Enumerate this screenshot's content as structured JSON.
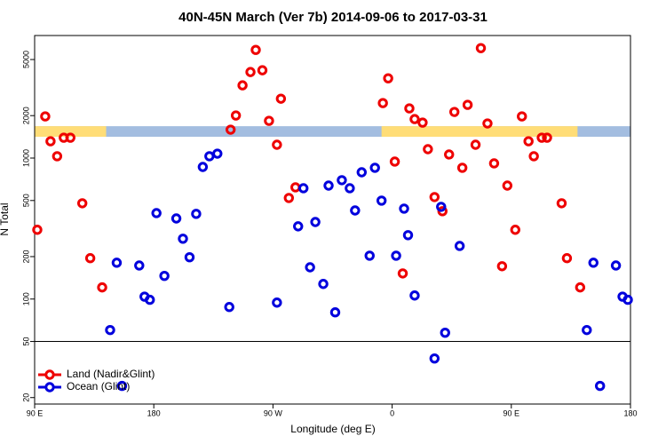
{
  "chart_data": {
    "type": "scatter",
    "title": "40N-45N March (Ver 7b)   2014-09-06 to 2017-03-31",
    "x_label": "Longitude (deg E)",
    "y_label": "N Total",
    "xlim": [
      -270,
      180
    ],
    "xticks": [
      {
        "value": -270,
        "label": "90 E"
      },
      {
        "value": -180,
        "label": "180"
      },
      {
        "value": -90,
        "label": "90 W"
      },
      0,
      {
        "value": 90,
        "label": "90 E"
      },
      180
    ],
    "ylim": [
      18,
      7400
    ],
    "ylog": true,
    "yticks": [
      20,
      50,
      100,
      200,
      500,
      1000,
      2000,
      5000
    ],
    "hline": 50,
    "band": {
      "range": [
        1416,
        1683
      ],
      "ocean_color": "#a3bde0",
      "land_color": "#ffdd77",
      "land": [
        [
          -270,
          -216
        ],
        [
          -8,
          140
        ]
      ]
    },
    "legend": "bottom-left",
    "series": [
      {
        "name": "Land (Nadir&Glint)",
        "color": "#ee0000",
        "x": [
          -268,
          -262,
          -258,
          -253,
          -248,
          -243,
          -234,
          -228,
          -219,
          -122,
          -118,
          -113,
          -107,
          -103,
          -98,
          -93,
          -87,
          -84,
          -78,
          -73,
          -7,
          -3,
          2,
          8,
          13,
          17,
          23,
          27,
          32,
          38,
          43,
          47,
          53,
          57,
          63,
          67,
          72,
          77,
          83,
          87,
          93,
          98,
          103,
          107,
          113,
          117,
          128,
          132,
          142
        ],
        "values": [
          310,
          1975,
          1316,
          1030,
          1395,
          1395,
          478,
          195,
          121,
          1590,
          2005,
          3280,
          4075,
          5850,
          4195,
          1837,
          1243,
          2637,
          521,
          620,
          2455,
          3680,
          944,
          152,
          2250,
          1890,
          1785,
          1156,
          529,
          420,
          1060,
          2124,
          853,
          2385,
          1243,
          6025,
          1760,
          917,
          171,
          638,
          310,
          1975,
          1316,
          1030,
          1395,
          1395,
          478,
          195,
          121
        ]
      },
      {
        "name": "Ocean (Glint)",
        "color": "#0000dd",
        "x": [
          -213,
          -208,
          -204,
          -191,
          -187,
          -183,
          -178,
          -172,
          -163,
          -158,
          -153,
          -148,
          -143,
          -138,
          -132,
          -123,
          -87,
          -71,
          -67,
          -62,
          -58,
          -52,
          -48,
          -43,
          -38,
          -32,
          -28,
          -23,
          -17,
          -13,
          -8,
          3,
          9,
          12,
          17,
          32,
          37,
          40,
          51,
          147,
          152,
          157,
          169,
          174,
          178
        ],
        "values": [
          60.3,
          181,
          24.2,
          173,
          104,
          98.8,
          407,
          146,
          373,
          268,
          198,
          402,
          865,
          1030,
          1075,
          87.8,
          94.4,
          328,
          611,
          168,
          352,
          128,
          638,
          80.5,
          697,
          611,
          425,
          793,
          203,
          853,
          499,
          203,
          438,
          284,
          106,
          37.9,
          451,
          57.7,
          238,
          60.3,
          181,
          24.2,
          173,
          104,
          98.8
        ]
      }
    ]
  }
}
